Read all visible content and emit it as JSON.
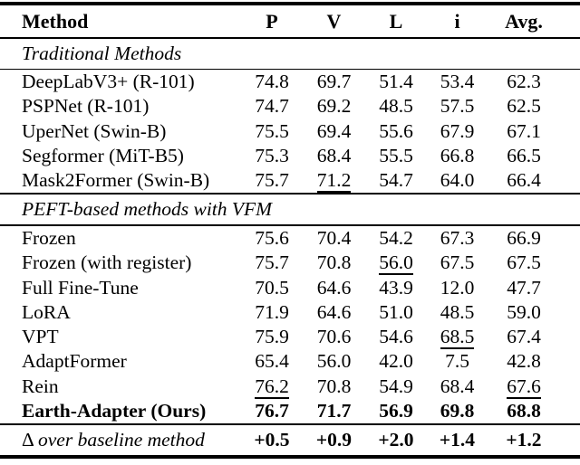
{
  "table": {
    "columns": [
      "Method",
      "P",
      "V",
      "L",
      "i",
      "Avg."
    ],
    "sections": [
      {
        "label": "Traditional Methods",
        "rows": [
          {
            "method": "DeepLabV3+ (R-101)",
            "values": [
              "74.8",
              "69.7",
              "51.4",
              "53.4",
              "62.3"
            ]
          },
          {
            "method": "PSPNet (R-101)",
            "values": [
              "74.7",
              "69.2",
              "48.5",
              "57.5",
              "62.5"
            ]
          },
          {
            "method": "UperNet (Swin-B)",
            "values": [
              "75.5",
              "69.4",
              "55.6",
              "67.9",
              "67.1"
            ]
          },
          {
            "method": "Segformer (MiT-B5)",
            "values": [
              "75.3",
              "68.4",
              "55.5",
              "66.8",
              "66.5"
            ]
          },
          {
            "method": "Mask2Former (Swin-B)",
            "values": [
              "75.7",
              "71.2",
              "54.7",
              "64.0",
              "66.4"
            ],
            "underline": [
              1
            ]
          }
        ]
      },
      {
        "label": "PEFT-based methods with VFM",
        "rows": [
          {
            "method": "Frozen",
            "values": [
              "75.6",
              "70.4",
              "54.2",
              "67.3",
              "66.9"
            ]
          },
          {
            "method": "Frozen (with register)",
            "values": [
              "75.7",
              "70.8",
              "56.0",
              "67.5",
              "67.5"
            ],
            "underline": [
              2
            ]
          },
          {
            "method": "Full Fine-Tune",
            "values": [
              "70.5",
              "64.6",
              "43.9",
              "12.0",
              "47.7"
            ]
          },
          {
            "method": "LoRA",
            "values": [
              "71.9",
              "64.6",
              "51.0",
              "48.5",
              "59.0"
            ]
          },
          {
            "method": "VPT",
            "values": [
              "75.9",
              "70.6",
              "54.6",
              "68.5",
              "67.4"
            ],
            "underline": [
              3
            ]
          },
          {
            "method": "AdaptFormer",
            "values": [
              "65.4",
              "56.0",
              "42.0",
              "7.5",
              "42.8"
            ]
          },
          {
            "method": "Rein",
            "values": [
              "76.2",
              "70.8",
              "54.9",
              "68.4",
              "67.6"
            ],
            "underline": [
              0,
              4
            ]
          },
          {
            "method": "Earth-Adapter (Ours)",
            "values": [
              "76.7",
              "71.7",
              "56.9",
              "69.8",
              "68.8"
            ],
            "bold": true
          }
        ]
      }
    ],
    "delta": {
      "symbol": "Δ",
      "label": "over baseline method",
      "values": [
        "+0.5",
        "+0.9",
        "+2.0",
        "+1.4",
        "+1.2"
      ]
    }
  }
}
